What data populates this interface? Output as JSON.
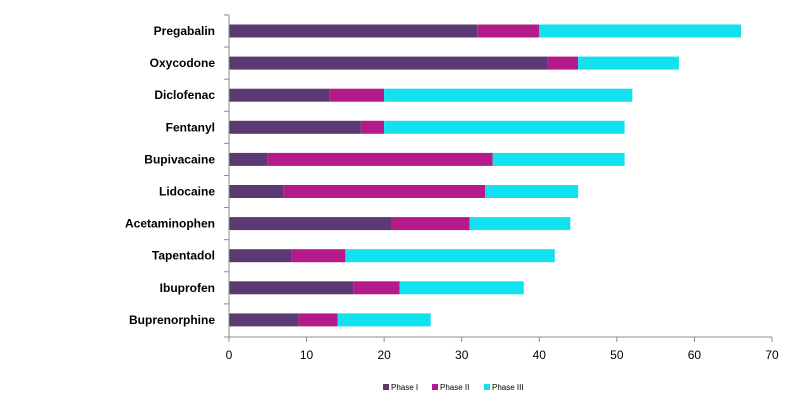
{
  "chart_data": {
    "type": "bar",
    "orientation": "horizontal",
    "stacked": true,
    "categories": [
      "Pregabalin",
      "Oxycodone",
      "Diclofenac",
      "Fentanyl",
      "Bupivacaine",
      "Lidocaine",
      "Acetaminophen",
      "Tapentadol",
      "Ibuprofen",
      "Buprenorphine"
    ],
    "series": [
      {
        "name": "Phase I",
        "color": "#5b3a74",
        "values": [
          32,
          41,
          13,
          17,
          5,
          7,
          21,
          8,
          16,
          9
        ]
      },
      {
        "name": "Phase II",
        "color": "#b5198a",
        "values": [
          8,
          4,
          7,
          3,
          29,
          26,
          10,
          7,
          6,
          5
        ]
      },
      {
        "name": "Phase III",
        "color": "#11e2ee",
        "values": [
          26,
          13,
          32,
          31,
          17,
          12,
          13,
          27,
          16,
          12
        ]
      }
    ],
    "title": "",
    "xlabel": "",
    "ylabel": "",
    "xlim": [
      0,
      70
    ],
    "xticks": [
      "0",
      "10",
      "20",
      "30",
      "40",
      "50",
      "60",
      "70"
    ],
    "grid": false,
    "legend_position": "bottom"
  }
}
